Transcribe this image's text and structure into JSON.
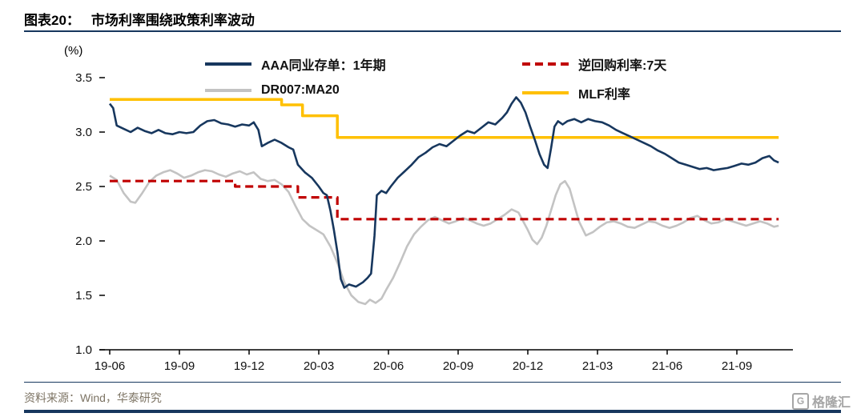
{
  "header": {
    "title_prefix": "图表20：",
    "title": "市场利率围绕政策利率波动"
  },
  "footer": {
    "source": "资料来源：Wind，华泰研究",
    "logo_text": "格隆汇"
  },
  "chart_data": {
    "type": "line",
    "unit_label": "(%)",
    "ylim": [
      1.0,
      3.5
    ],
    "grid": false,
    "legend_position": "top-inside",
    "colors": {
      "navy": "#17375e",
      "red": "#c00000",
      "gray": "#c3c3c3",
      "yellow": "#ffc000"
    },
    "legend": [
      {
        "label": "AAA同业存单：1年期",
        "color": "navy",
        "dashed": false
      },
      {
        "label": "逆回购利率:7天",
        "color": "red",
        "dashed": true
      },
      {
        "label": "DR007:MA20",
        "color": "gray",
        "dashed": false
      },
      {
        "label": "MLF利率",
        "color": "yellow",
        "dashed": false
      }
    ],
    "y_ticks": [
      {
        "value": 1.0,
        "label": "1.0"
      },
      {
        "value": 1.5,
        "label": "1.5"
      },
      {
        "value": 2.0,
        "label": "2.0"
      },
      {
        "value": 2.5,
        "label": "2.5"
      },
      {
        "value": 3.0,
        "label": "3.0"
      },
      {
        "value": 3.5,
        "label": "3.5"
      }
    ],
    "x_ticks": [
      {
        "month": 0,
        "label": "19-06"
      },
      {
        "month": 3,
        "label": "19-09"
      },
      {
        "month": 6,
        "label": "19-12"
      },
      {
        "month": 9,
        "label": "20-03"
      },
      {
        "month": 12,
        "label": "20-06"
      },
      {
        "month": 15,
        "label": "20-09"
      },
      {
        "month": 18,
        "label": "20-12"
      },
      {
        "month": 21,
        "label": "21-03"
      },
      {
        "month": 24,
        "label": "21-06"
      },
      {
        "month": 27,
        "label": "21-09"
      }
    ],
    "series": [
      {
        "name": "DR007:MA20",
        "color": "gray",
        "dashed": false,
        "width": 2.6,
        "points": [
          [
            0,
            2.6
          ],
          [
            0.3,
            2.56
          ],
          [
            0.6,
            2.44
          ],
          [
            0.9,
            2.36
          ],
          [
            1.1,
            2.35
          ],
          [
            1.4,
            2.44
          ],
          [
            1.7,
            2.54
          ],
          [
            2.0,
            2.6
          ],
          [
            2.3,
            2.63
          ],
          [
            2.6,
            2.65
          ],
          [
            2.9,
            2.62
          ],
          [
            3.2,
            2.58
          ],
          [
            3.5,
            2.6
          ],
          [
            3.8,
            2.63
          ],
          [
            4.1,
            2.65
          ],
          [
            4.4,
            2.64
          ],
          [
            4.7,
            2.61
          ],
          [
            5.0,
            2.59
          ],
          [
            5.3,
            2.62
          ],
          [
            5.6,
            2.64
          ],
          [
            5.9,
            2.61
          ],
          [
            6.2,
            2.63
          ],
          [
            6.5,
            2.57
          ],
          [
            6.8,
            2.55
          ],
          [
            7.1,
            2.56
          ],
          [
            7.4,
            2.52
          ],
          [
            7.7,
            2.45
          ],
          [
            8.0,
            2.32
          ],
          [
            8.3,
            2.2
          ],
          [
            8.6,
            2.14
          ],
          [
            8.9,
            2.1
          ],
          [
            9.2,
            2.06
          ],
          [
            9.5,
            1.95
          ],
          [
            9.8,
            1.8
          ],
          [
            10.1,
            1.62
          ],
          [
            10.4,
            1.5
          ],
          [
            10.7,
            1.44
          ],
          [
            11.0,
            1.42
          ],
          [
            11.2,
            1.46
          ],
          [
            11.45,
            1.43
          ],
          [
            11.7,
            1.47
          ],
          [
            11.9,
            1.55
          ],
          [
            12.2,
            1.66
          ],
          [
            12.5,
            1.8
          ],
          [
            12.8,
            1.95
          ],
          [
            13.1,
            2.06
          ],
          [
            13.4,
            2.13
          ],
          [
            13.7,
            2.19
          ],
          [
            14.0,
            2.22
          ],
          [
            14.3,
            2.19
          ],
          [
            14.6,
            2.16
          ],
          [
            14.9,
            2.18
          ],
          [
            15.2,
            2.21
          ],
          [
            15.5,
            2.19
          ],
          [
            15.8,
            2.16
          ],
          [
            16.1,
            2.14
          ],
          [
            16.4,
            2.16
          ],
          [
            16.7,
            2.2
          ],
          [
            17.0,
            2.24
          ],
          [
            17.3,
            2.29
          ],
          [
            17.6,
            2.26
          ],
          [
            17.8,
            2.18
          ],
          [
            18.0,
            2.1
          ],
          [
            18.2,
            2.01
          ],
          [
            18.4,
            1.97
          ],
          [
            18.6,
            2.03
          ],
          [
            18.8,
            2.14
          ],
          [
            19.0,
            2.28
          ],
          [
            19.2,
            2.42
          ],
          [
            19.4,
            2.52
          ],
          [
            19.6,
            2.55
          ],
          [
            19.8,
            2.48
          ],
          [
            20.0,
            2.33
          ],
          [
            20.2,
            2.18
          ],
          [
            20.5,
            2.05
          ],
          [
            20.8,
            2.08
          ],
          [
            21.1,
            2.13
          ],
          [
            21.4,
            2.17
          ],
          [
            21.7,
            2.18
          ],
          [
            22.0,
            2.16
          ],
          [
            22.3,
            2.13
          ],
          [
            22.6,
            2.12
          ],
          [
            22.9,
            2.15
          ],
          [
            23.2,
            2.18
          ],
          [
            23.5,
            2.17
          ],
          [
            23.8,
            2.14
          ],
          [
            24.1,
            2.12
          ],
          [
            24.4,
            2.14
          ],
          [
            24.7,
            2.17
          ],
          [
            25.0,
            2.21
          ],
          [
            25.3,
            2.23
          ],
          [
            25.6,
            2.19
          ],
          [
            25.9,
            2.16
          ],
          [
            26.2,
            2.17
          ],
          [
            26.5,
            2.2
          ],
          [
            26.8,
            2.18
          ],
          [
            27.1,
            2.16
          ],
          [
            27.4,
            2.14
          ],
          [
            27.7,
            2.16
          ],
          [
            28.0,
            2.18
          ],
          [
            28.3,
            2.16
          ],
          [
            28.6,
            2.13
          ],
          [
            28.8,
            2.14
          ]
        ]
      },
      {
        "name": "逆回购利率:7天",
        "color": "red",
        "dashed": true,
        "width": 3.2,
        "points": [
          [
            0,
            2.55
          ],
          [
            5.4,
            2.55
          ],
          [
            5.4,
            2.5
          ],
          [
            8.1,
            2.5
          ],
          [
            8.1,
            2.4
          ],
          [
            9.8,
            2.4
          ],
          [
            9.8,
            2.2
          ],
          [
            28.8,
            2.2
          ]
        ]
      },
      {
        "name": "MLF利率",
        "color": "yellow",
        "dashed": false,
        "width": 3.5,
        "points": [
          [
            0,
            3.3
          ],
          [
            7.4,
            3.3
          ],
          [
            7.4,
            3.25
          ],
          [
            8.3,
            3.25
          ],
          [
            8.3,
            3.15
          ],
          [
            9.8,
            3.15
          ],
          [
            9.8,
            2.95
          ],
          [
            28.8,
            2.95
          ]
        ]
      },
      {
        "name": "AAA同业存单：1年期",
        "color": "navy",
        "dashed": false,
        "width": 2.6,
        "points": [
          [
            0,
            3.26
          ],
          [
            0.15,
            3.22
          ],
          [
            0.3,
            3.06
          ],
          [
            0.6,
            3.03
          ],
          [
            0.9,
            3.0
          ],
          [
            1.2,
            3.04
          ],
          [
            1.5,
            3.01
          ],
          [
            1.8,
            2.99
          ],
          [
            2.1,
            3.02
          ],
          [
            2.4,
            2.99
          ],
          [
            2.7,
            2.98
          ],
          [
            3.0,
            3.0
          ],
          [
            3.3,
            2.99
          ],
          [
            3.6,
            3.0
          ],
          [
            3.9,
            3.06
          ],
          [
            4.2,
            3.1
          ],
          [
            4.5,
            3.11
          ],
          [
            4.8,
            3.08
          ],
          [
            5.1,
            3.07
          ],
          [
            5.4,
            3.05
          ],
          [
            5.7,
            3.07
          ],
          [
            6.0,
            3.06
          ],
          [
            6.2,
            3.09
          ],
          [
            6.4,
            3.02
          ],
          [
            6.55,
            2.87
          ],
          [
            6.8,
            2.9
          ],
          [
            7.1,
            2.93
          ],
          [
            7.4,
            2.9
          ],
          [
            7.7,
            2.86
          ],
          [
            7.9,
            2.84
          ],
          [
            8.1,
            2.7
          ],
          [
            8.4,
            2.63
          ],
          [
            8.7,
            2.58
          ],
          [
            9.0,
            2.5
          ],
          [
            9.2,
            2.44
          ],
          [
            9.35,
            2.42
          ],
          [
            9.5,
            2.28
          ],
          [
            9.65,
            2.1
          ],
          [
            9.8,
            1.9
          ],
          [
            9.95,
            1.65
          ],
          [
            10.1,
            1.57
          ],
          [
            10.3,
            1.6
          ],
          [
            10.6,
            1.58
          ],
          [
            10.9,
            1.62
          ],
          [
            11.1,
            1.66
          ],
          [
            11.25,
            1.7
          ],
          [
            11.4,
            2.05
          ],
          [
            11.5,
            2.42
          ],
          [
            11.7,
            2.46
          ],
          [
            11.9,
            2.44
          ],
          [
            12.1,
            2.5
          ],
          [
            12.4,
            2.58
          ],
          [
            12.7,
            2.64
          ],
          [
            13.0,
            2.7
          ],
          [
            13.3,
            2.77
          ],
          [
            13.6,
            2.81
          ],
          [
            13.9,
            2.86
          ],
          [
            14.2,
            2.89
          ],
          [
            14.5,
            2.87
          ],
          [
            14.8,
            2.92
          ],
          [
            15.1,
            2.97
          ],
          [
            15.4,
            3.01
          ],
          [
            15.7,
            2.99
          ],
          [
            16.0,
            3.04
          ],
          [
            16.3,
            3.09
          ],
          [
            16.6,
            3.07
          ],
          [
            16.9,
            3.13
          ],
          [
            17.1,
            3.18
          ],
          [
            17.3,
            3.26
          ],
          [
            17.5,
            3.32
          ],
          [
            17.7,
            3.27
          ],
          [
            17.9,
            3.18
          ],
          [
            18.1,
            3.05
          ],
          [
            18.3,
            2.93
          ],
          [
            18.5,
            2.8
          ],
          [
            18.7,
            2.7
          ],
          [
            18.85,
            2.67
          ],
          [
            19.0,
            2.85
          ],
          [
            19.15,
            3.05
          ],
          [
            19.3,
            3.1
          ],
          [
            19.5,
            3.07
          ],
          [
            19.7,
            3.1
          ],
          [
            20.0,
            3.12
          ],
          [
            20.3,
            3.09
          ],
          [
            20.6,
            3.12
          ],
          [
            20.9,
            3.1
          ],
          [
            21.2,
            3.09
          ],
          [
            21.5,
            3.06
          ],
          [
            21.8,
            3.02
          ],
          [
            22.1,
            2.99
          ],
          [
            22.4,
            2.96
          ],
          [
            22.7,
            2.93
          ],
          [
            23.0,
            2.9
          ],
          [
            23.3,
            2.87
          ],
          [
            23.6,
            2.83
          ],
          [
            23.9,
            2.8
          ],
          [
            24.2,
            2.76
          ],
          [
            24.5,
            2.72
          ],
          [
            24.8,
            2.7
          ],
          [
            25.1,
            2.68
          ],
          [
            25.4,
            2.66
          ],
          [
            25.7,
            2.67
          ],
          [
            26.0,
            2.65
          ],
          [
            26.3,
            2.66
          ],
          [
            26.6,
            2.67
          ],
          [
            26.9,
            2.69
          ],
          [
            27.2,
            2.71
          ],
          [
            27.5,
            2.7
          ],
          [
            27.8,
            2.72
          ],
          [
            28.1,
            2.76
          ],
          [
            28.4,
            2.78
          ],
          [
            28.6,
            2.74
          ],
          [
            28.8,
            2.72
          ]
        ]
      }
    ]
  }
}
